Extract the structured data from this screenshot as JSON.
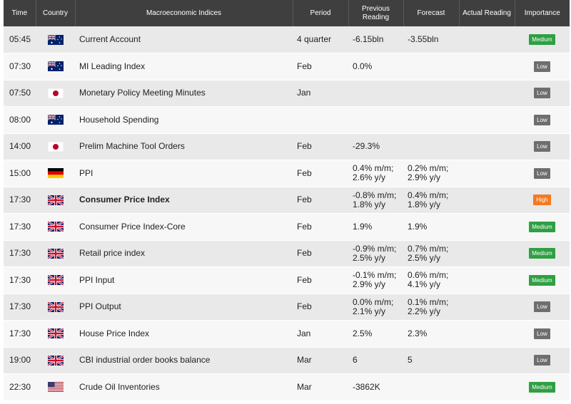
{
  "headers": {
    "time": "Time",
    "country": "Country",
    "indices": "Macroeconomic Indices",
    "period": "Period",
    "previous": "Previous Reading",
    "forecast": "Forecast",
    "actual": "Actual Reading",
    "importance": "Importance"
  },
  "colors": {
    "header_bg": "#3f3f3f",
    "medium": "#2ea043",
    "low": "#6e6e6e",
    "high": "#f47920"
  },
  "rows": [
    {
      "time": "05:45",
      "country": "australia-flag-icon",
      "index": "Current Account",
      "bold": false,
      "period": "4 quarter",
      "previous": [
        "-6.15bln"
      ],
      "forecast": [
        "-3.55bln"
      ],
      "actual": "",
      "importance": "Medium",
      "level": "medium"
    },
    {
      "time": "07:30",
      "country": "australia-flag-icon",
      "index": "MI Leading Index",
      "bold": false,
      "period": "Feb",
      "previous": [
        "0.0%"
      ],
      "forecast": [],
      "actual": "",
      "importance": "Low",
      "level": "low"
    },
    {
      "time": "07:50",
      "country": "japan-flag-icon",
      "index": "Monetary Policy Meeting Minutes",
      "bold": false,
      "period": "Jan",
      "previous": [],
      "forecast": [],
      "actual": "",
      "importance": "Low",
      "level": "low"
    },
    {
      "time": "08:00",
      "country": "australia-flag-icon",
      "index": "Household Spending",
      "bold": false,
      "period": "",
      "previous": [],
      "forecast": [],
      "actual": "",
      "importance": "Low",
      "level": "low"
    },
    {
      "time": "14:00",
      "country": "japan-flag-icon",
      "index": "Prelim Machine Tool Orders",
      "bold": false,
      "period": "Feb",
      "previous": [
        "-29.3%"
      ],
      "forecast": [],
      "actual": "",
      "importance": "Low",
      "level": "low"
    },
    {
      "time": "15:00",
      "country": "germany-flag-icon",
      "index": "PPI",
      "bold": false,
      "period": "Feb",
      "previous": [
        "0.4% m/m;",
        "2.6% y/y"
      ],
      "forecast": [
        "0.2% m/m;",
        "2.9% y/y"
      ],
      "actual": "",
      "importance": "Low",
      "level": "low"
    },
    {
      "time": "17:30",
      "country": "uk-flag-icon",
      "index": "Consumer Price Index",
      "bold": true,
      "period": "Feb",
      "previous": [
        "-0.8% m/m;",
        "1.8% y/y"
      ],
      "forecast": [
        "0.4% m/m;",
        "1.8% y/y"
      ],
      "actual": "",
      "importance": "High",
      "level": "high"
    },
    {
      "time": "17:30",
      "country": "uk-flag-icon",
      "index": "Consumer Price Index-Core",
      "bold": false,
      "period": "Feb",
      "previous": [
        "1.9%"
      ],
      "forecast": [
        "1.9%"
      ],
      "actual": "",
      "importance": "Medium",
      "level": "medium"
    },
    {
      "time": "17:30",
      "country": "uk-flag-icon",
      "index": "Retail price index",
      "bold": false,
      "period": "Feb",
      "previous": [
        "-0.9% m/m;",
        "2.5% y/y"
      ],
      "forecast": [
        "0.7% m/m;",
        "2.5% y/y"
      ],
      "actual": "",
      "importance": "Medium",
      "level": "medium"
    },
    {
      "time": "17:30",
      "country": "uk-flag-icon",
      "index": "PPI Input",
      "bold": false,
      "period": "Feb",
      "previous": [
        "-0.1% m/m;",
        "2.9% y/y"
      ],
      "forecast": [
        "0.6% m/m;",
        "4.1% y/y"
      ],
      "actual": "",
      "importance": "Medium",
      "level": "medium"
    },
    {
      "time": "17:30",
      "country": "uk-flag-icon",
      "index": "PPI Output",
      "bold": false,
      "period": "Feb",
      "previous": [
        "0.0% m/m;",
        "2.1% y/y"
      ],
      "forecast": [
        "0.1% m/m;",
        "2.2% y/y"
      ],
      "actual": "",
      "importance": "Low",
      "level": "low"
    },
    {
      "time": "17:30",
      "country": "uk-flag-icon",
      "index": "House Price Index",
      "bold": false,
      "period": "Jan",
      "previous": [
        "2.5%"
      ],
      "forecast": [
        "2.3%"
      ],
      "actual": "",
      "importance": "Low",
      "level": "low"
    },
    {
      "time": "19:00",
      "country": "uk-flag-icon",
      "index": "CBI industrial order books balance",
      "bold": false,
      "period": "Mar",
      "previous": [
        "6"
      ],
      "forecast": [
        "5"
      ],
      "actual": "",
      "importance": "Low",
      "level": "low"
    },
    {
      "time": "22:30",
      "country": "usa-flag-icon",
      "index": "Crude Oil Inventories",
      "bold": false,
      "period": "Mar",
      "previous": [
        "-3862K"
      ],
      "forecast": [],
      "actual": "",
      "importance": "Medium",
      "level": "medium"
    }
  ]
}
